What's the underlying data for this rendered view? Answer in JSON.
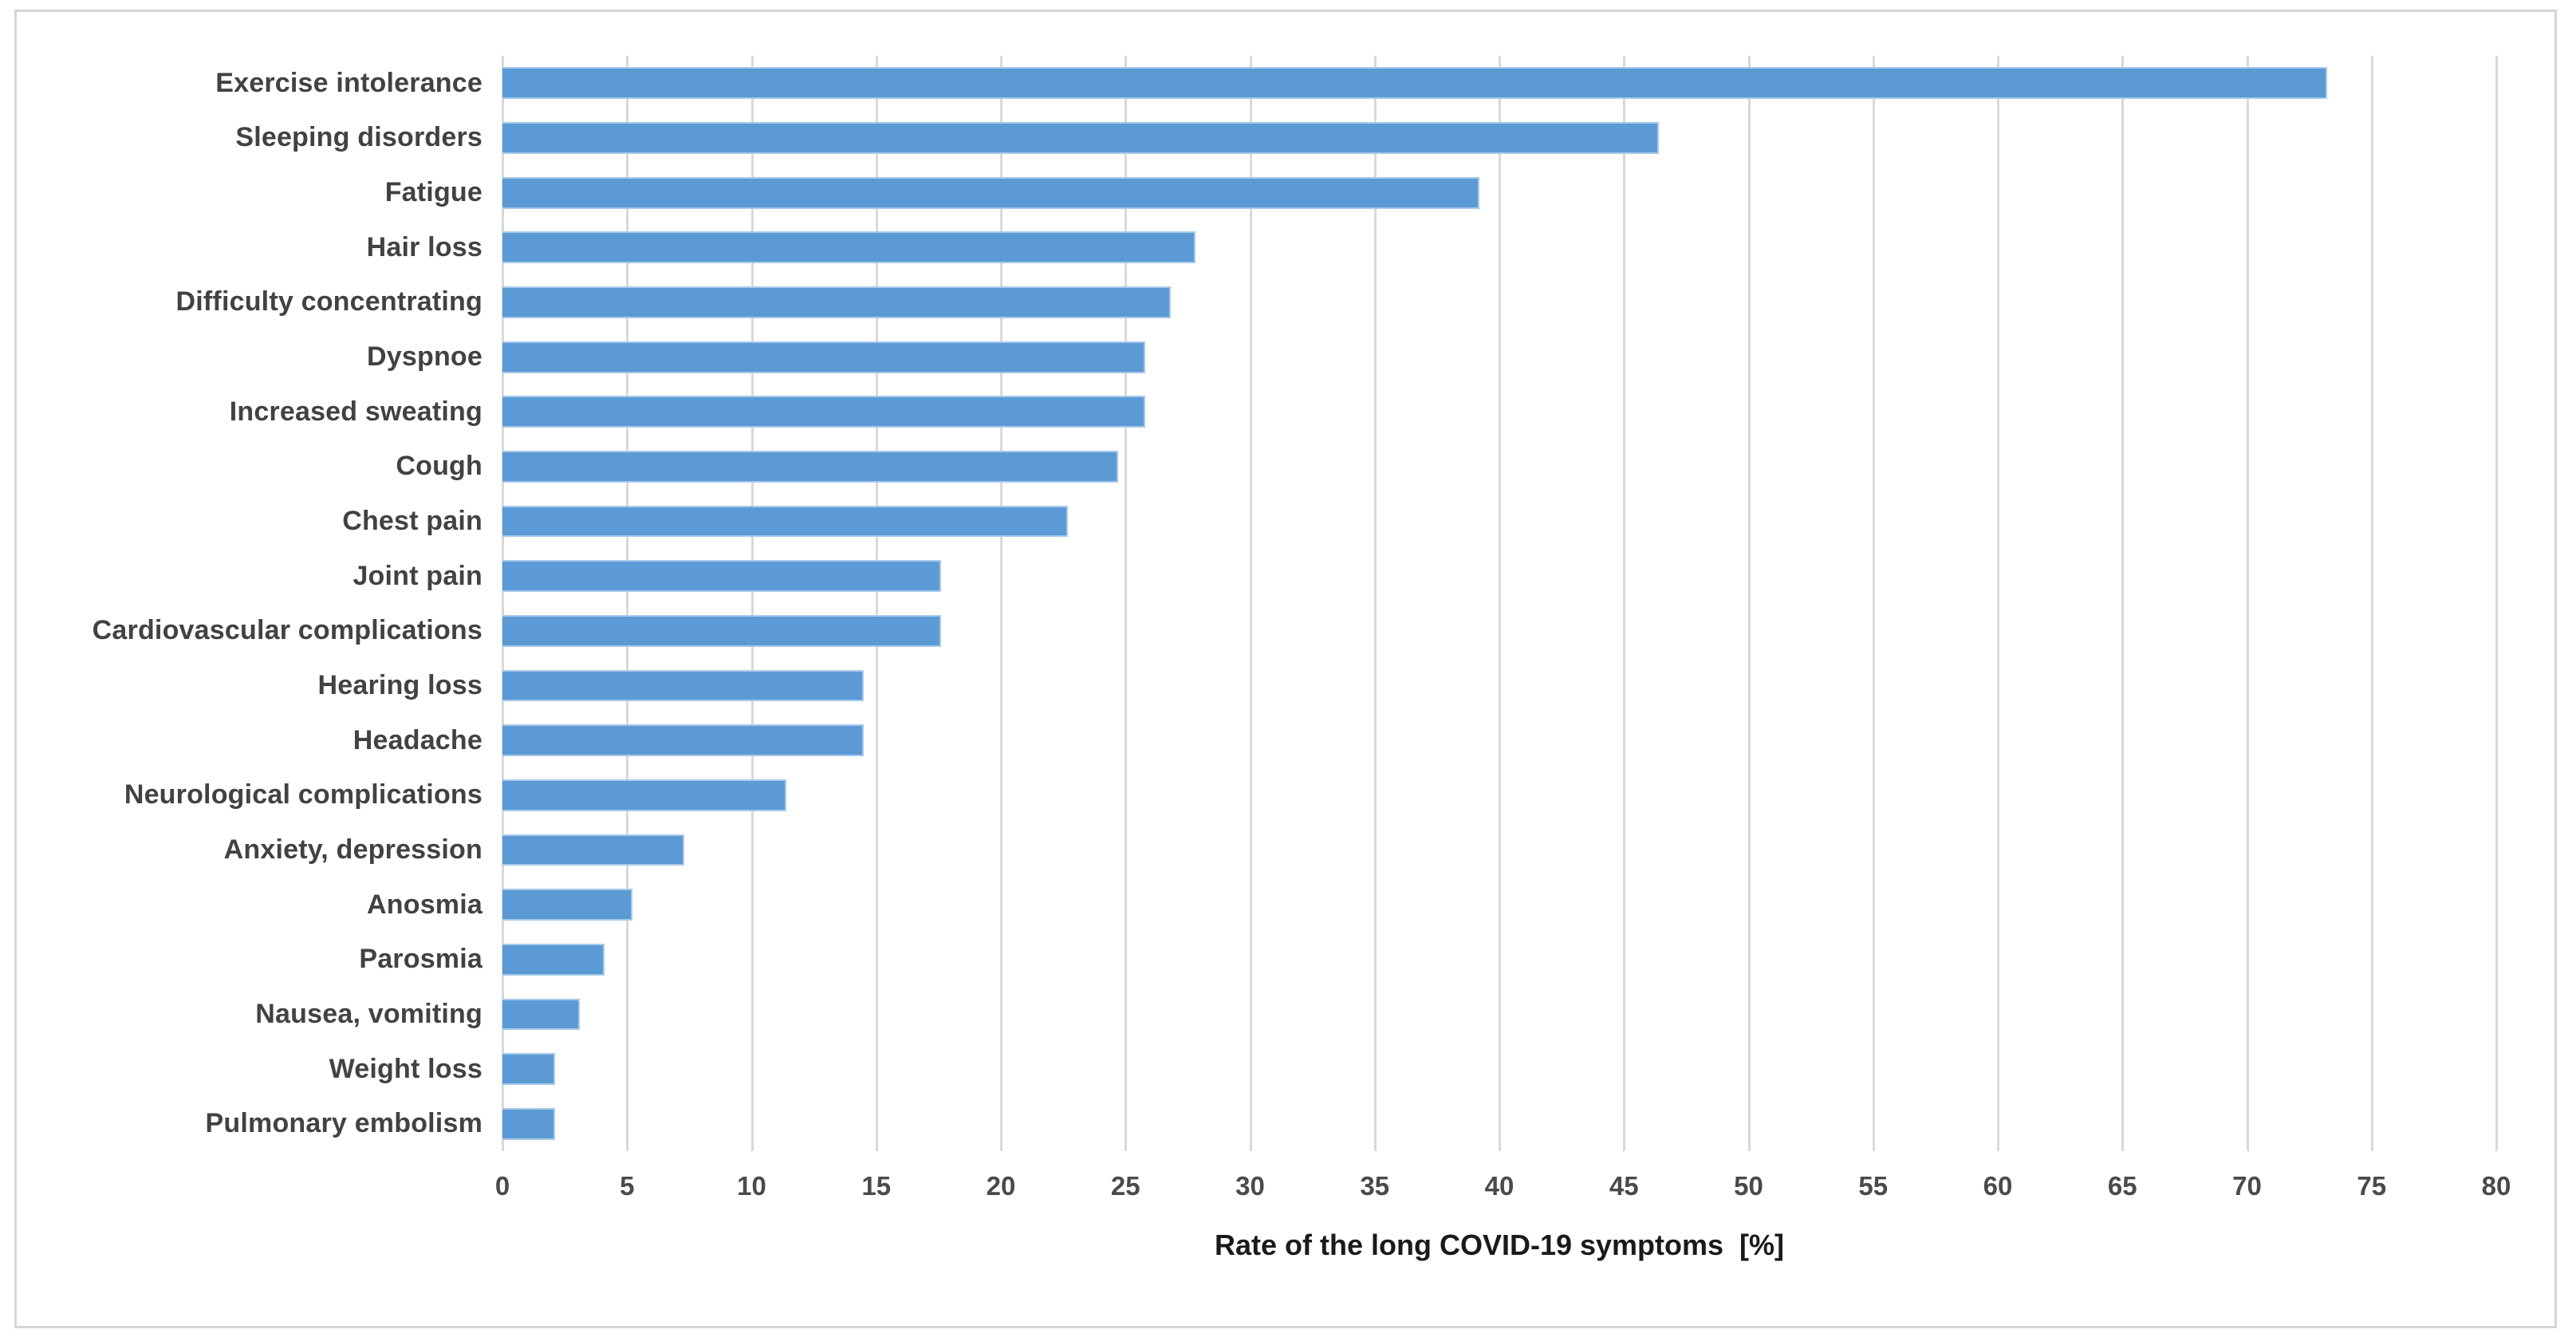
{
  "chart_data": {
    "type": "bar",
    "orientation": "horizontal",
    "title": "",
    "xlabel": "Rate of the long COVID-19 symptoms  [%]",
    "ylabel": "",
    "categories": [
      "Exercise intolerance",
      "Sleeping disorders",
      "Fatigue",
      "Hair loss",
      "Difficulty concentrating",
      "Dyspnoe",
      "Increased sweating",
      "Cough",
      "Chest pain",
      "Joint pain",
      "Cardiovascular complications",
      "Hearing loss",
      "Headache",
      "Neurological complications",
      "Anxiety, depression",
      "Anosmia",
      "Parosmia",
      "Nausea, vomiting",
      "Weight loss",
      "Pulmonary embolism"
    ],
    "values": [
      73.2,
      46.4,
      39.2,
      27.8,
      26.8,
      25.8,
      25.8,
      24.7,
      22.7,
      17.6,
      17.6,
      14.5,
      14.5,
      11.4,
      7.3,
      5.2,
      4.1,
      3.1,
      2.1,
      2.1
    ],
    "xlim": [
      0,
      80
    ],
    "xticks": [
      0,
      5,
      10,
      15,
      20,
      25,
      30,
      35,
      40,
      45,
      50,
      55,
      60,
      65,
      70,
      75,
      80
    ],
    "grid": "vertical-gridlines-on",
    "legend": "none",
    "colors": {
      "bar_fill": "#5b9ad5",
      "bar_border": "#a6c9ea",
      "gridline": "#d9d9d9",
      "category_label": "#424242",
      "tick_label": "#4a4a4a",
      "axis_title": "#1a1a1a",
      "frame_border": "#d6d6d6",
      "background": "#ffffff"
    }
  }
}
